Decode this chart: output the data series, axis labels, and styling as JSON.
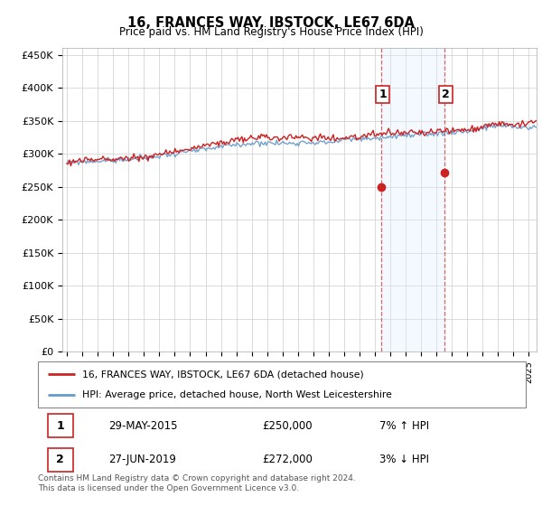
{
  "title": "16, FRANCES WAY, IBSTOCK, LE67 6DA",
  "subtitle": "Price paid vs. HM Land Registry's House Price Index (HPI)",
  "ylabel_ticks": [
    "£0",
    "£50K",
    "£100K",
    "£150K",
    "£200K",
    "£250K",
    "£300K",
    "£350K",
    "£400K",
    "£450K"
  ],
  "ytick_values": [
    0,
    50000,
    100000,
    150000,
    200000,
    250000,
    300000,
    350000,
    400000,
    450000
  ],
  "ylim": [
    0,
    460000
  ],
  "xlim_start": 1994.7,
  "xlim_end": 2025.5,
  "hpi_fill_color": "#ddeeff",
  "hpi_line_color": "#6699cc",
  "price_color": "#cc2222",
  "transaction1_date": 2015.41,
  "transaction1_price": 250000,
  "transaction2_date": 2019.49,
  "transaction2_price": 272000,
  "shade_x1": 2015.41,
  "shade_x2": 2019.49,
  "legend_price_label": "16, FRANCES WAY, IBSTOCK, LE67 6DA (detached house)",
  "legend_hpi_label": "HPI: Average price, detached house, North West Leicestershire",
  "table_row1": [
    "1",
    "29-MAY-2015",
    "£250,000",
    "7% ↑ HPI"
  ],
  "table_row2": [
    "2",
    "27-JUN-2019",
    "£272,000",
    "3% ↓ HPI"
  ],
  "footer": "Contains HM Land Registry data © Crown copyright and database right 2024.\nThis data is licensed under the Open Government Licence v3.0.",
  "background_color": "#ffffff",
  "grid_color": "#cccccc",
  "box_border_color": "#cc2222"
}
